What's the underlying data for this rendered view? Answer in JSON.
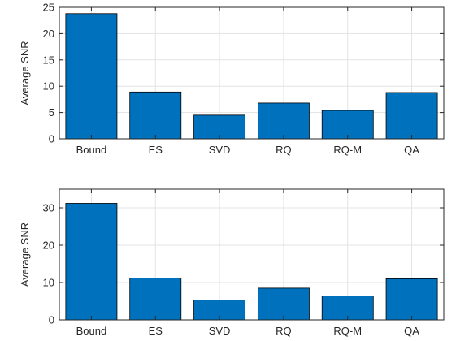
{
  "chart_data": [
    {
      "type": "bar",
      "categories": [
        "Bound",
        "ES",
        "SVD",
        "RQ",
        "RQ-M",
        "QA"
      ],
      "values": [
        23.8,
        8.9,
        4.5,
        6.8,
        5.4,
        8.8
      ],
      "ylabel": "Average SNR",
      "ylim": [
        0,
        25
      ],
      "yticks": [
        "0",
        "5",
        "10",
        "15",
        "20",
        "25"
      ],
      "grid": true,
      "bar_color": "#0072BD"
    },
    {
      "type": "bar",
      "categories": [
        "Bound",
        "ES",
        "SVD",
        "RQ",
        "RQ-M",
        "QA"
      ],
      "values": [
        31.2,
        11.2,
        5.3,
        8.5,
        6.4,
        11.0
      ],
      "ylabel": "Average SNR",
      "ylim": [
        0,
        35
      ],
      "yticks": [
        "0",
        "10",
        "20",
        "30"
      ],
      "grid": true,
      "bar_color": "#0072BD"
    }
  ]
}
